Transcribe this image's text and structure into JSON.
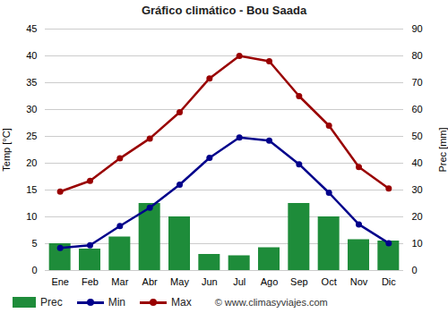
{
  "chart_data": {
    "type": "combo",
    "title": "Gráfico climático - Bou Saada",
    "categories": [
      "Ene",
      "Feb",
      "Mar",
      "Abr",
      "May",
      "Jun",
      "Jul",
      "Ago",
      "Sep",
      "Oct",
      "Nov",
      "Dic"
    ],
    "series": [
      {
        "name": "Prec",
        "type": "bar",
        "axis": "y2",
        "color": "#1e8c3a",
        "values": [
          10,
          8,
          12.5,
          25,
          20,
          6,
          5.5,
          8.5,
          25,
          20,
          11.5,
          11
        ]
      },
      {
        "name": "Min",
        "type": "line",
        "marker": "circle",
        "color": "#00008b",
        "values": [
          4.2,
          4.7,
          8.3,
          11.7,
          16,
          21,
          24.8,
          24.2,
          19.8,
          14.5,
          8.6,
          5.1
        ]
      },
      {
        "name": "Max",
        "type": "line",
        "marker": "circle",
        "color": "#990000",
        "values": [
          14.7,
          16.7,
          20.9,
          24.6,
          29.5,
          35.8,
          40,
          39,
          32.5,
          27,
          19.3,
          15.3
        ]
      }
    ],
    "y_label": "Temp [°C]",
    "y2_label": "Prec [mm]",
    "ylim": [
      0,
      45
    ],
    "yticks": [
      0,
      5,
      10,
      15,
      20,
      25,
      30,
      35,
      40,
      45
    ],
    "y2lim": [
      0,
      90
    ],
    "y2ticks": [
      0,
      10,
      20,
      30,
      40,
      50,
      60,
      70,
      80,
      90
    ],
    "grid": true,
    "legend": "bottom",
    "watermark": "© www.climasyviajes.com"
  }
}
